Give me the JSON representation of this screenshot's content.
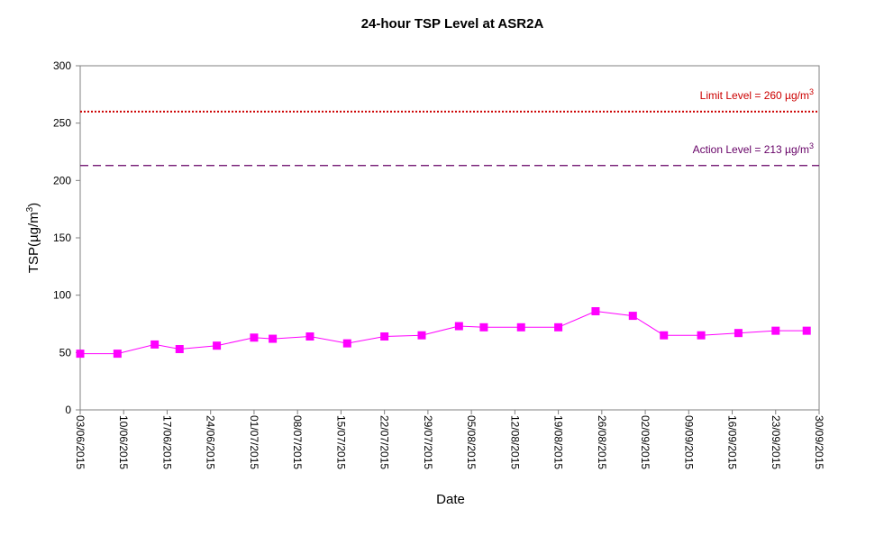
{
  "chart_data": {
    "type": "line",
    "title": "24-hour TSP Level at ASR2A",
    "xlabel": "Date",
    "ylabel": "TSP(µg/m",
    "ylabel_sup": "3",
    "ylabel_close": ")",
    "ylim": [
      0,
      300
    ],
    "yticks": [
      0,
      50,
      100,
      150,
      200,
      250,
      300
    ],
    "xlim": [
      "2015-06-03",
      "2015-09-30"
    ],
    "xticks": [
      "2015-06-03",
      "2015-06-10",
      "2015-06-17",
      "2015-06-24",
      "2015-07-01",
      "2015-07-08",
      "2015-07-15",
      "2015-07-22",
      "2015-07-29",
      "2015-08-05",
      "2015-08-12",
      "2015-08-19",
      "2015-08-26",
      "2015-09-02",
      "2015-09-09",
      "2015-09-16",
      "2015-09-23",
      "2015-09-30"
    ],
    "xtick_labels": [
      "03/06/2015",
      "10/06/2015",
      "17/06/2015",
      "24/06/2015",
      "01/07/2015",
      "08/07/2015",
      "15/07/2015",
      "22/07/2015",
      "29/07/2015",
      "05/08/2015",
      "12/08/2015",
      "19/08/2015",
      "26/08/2015",
      "02/09/2015",
      "09/09/2015",
      "16/09/2015",
      "23/09/2015",
      "30/09/2015"
    ],
    "grid": false,
    "series": [
      {
        "color": "#ff00ff",
        "marker": "square",
        "points": [
          {
            "x": "2015-06-03",
            "y": 49
          },
          {
            "x": "2015-06-09",
            "y": 49
          },
          {
            "x": "2015-06-15",
            "y": 57
          },
          {
            "x": "2015-06-19",
            "y": 53
          },
          {
            "x": "2015-06-25",
            "y": 56
          },
          {
            "x": "2015-07-01",
            "y": 63
          },
          {
            "x": "2015-07-04",
            "y": 62
          },
          {
            "x": "2015-07-10",
            "y": 64
          },
          {
            "x": "2015-07-16",
            "y": 58
          },
          {
            "x": "2015-07-22",
            "y": 64
          },
          {
            "x": "2015-07-28",
            "y": 65
          },
          {
            "x": "2015-08-03",
            "y": 73
          },
          {
            "x": "2015-08-07",
            "y": 72
          },
          {
            "x": "2015-08-13",
            "y": 72
          },
          {
            "x": "2015-08-19",
            "y": 72
          },
          {
            "x": "2015-08-25",
            "y": 86
          },
          {
            "x": "2015-08-31",
            "y": 82
          },
          {
            "x": "2015-09-05",
            "y": 65
          },
          {
            "x": "2015-09-11",
            "y": 65
          },
          {
            "x": "2015-09-17",
            "y": 67
          },
          {
            "x": "2015-09-23",
            "y": 69
          },
          {
            "x": "2015-09-28",
            "y": 69
          }
        ]
      }
    ],
    "reference_lines": [
      {
        "value": 260,
        "label": "Limit Level  = 260 µg/m",
        "label_sup": "3",
        "color": "#cc0000",
        "style": "dotted"
      },
      {
        "value": 213,
        "label": "Action Level  = 213 µg/m",
        "label_sup": "3",
        "color": "#660066",
        "style": "dashed"
      }
    ]
  }
}
